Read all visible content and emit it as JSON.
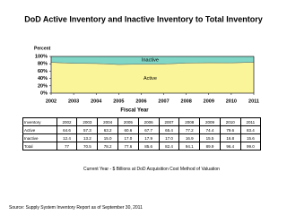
{
  "chart_data": {
    "type": "stacked_area",
    "title": "DoD Active Inventory and Inactive Inventory to Total Inventory",
    "ylabel": "Percent",
    "xlabel": "Fiscal Year",
    "x": [
      2002,
      2003,
      2004,
      2005,
      2006,
      2007,
      2008,
      2009,
      2010,
      2011
    ],
    "xlim": [
      2002,
      2011
    ],
    "xticks": [
      2002,
      2003,
      2004,
      2005,
      2006,
      2007,
      2008,
      2009,
      2010,
      2011
    ],
    "ylim": [
      0,
      100
    ],
    "yticks": [
      {
        "value": 0,
        "label": "0%"
      },
      {
        "value": 20,
        "label": "20%"
      },
      {
        "value": 40,
        "label": "40%"
      },
      {
        "value": 60,
        "label": "60%"
      },
      {
        "value": 80,
        "label": "80%"
      },
      {
        "value": 100,
        "label": "100%"
      }
    ],
    "series": [
      {
        "name": "Active",
        "color": "#fbf59a",
        "values": [
          83.9,
          81.3,
          80.8,
          78.1,
          79.1,
          79.4,
          82.0,
          82.8,
          82.6,
          84.2
        ]
      },
      {
        "name": "Inactive",
        "color": "#7fd6c6",
        "values": [
          16.1,
          18.7,
          19.2,
          21.9,
          20.9,
          20.6,
          18.0,
          17.2,
          17.4,
          15.8
        ]
      }
    ]
  },
  "table": {
    "header": [
      "Inventory",
      "2002",
      "2003",
      "2004",
      "2005",
      "2006",
      "2007",
      "2008",
      "2009",
      "2010",
      "2011"
    ],
    "rows": [
      [
        "Active",
        "64.6",
        "57.3",
        "63.2",
        "60.6",
        "67.7",
        "65.4",
        "77.2",
        "74.4",
        "79.6",
        "83.4"
      ],
      [
        "Inactive",
        "12.4",
        "13.2",
        "15.0",
        "17.0",
        "17.9",
        "17.0",
        "16.9",
        "15.5",
        "16.8",
        "15.6"
      ],
      [
        "Total",
        "77",
        "70.5",
        "78.2",
        "77.6",
        "85.6",
        "82.4",
        "94.1",
        "89.9",
        "96.4",
        "99.0"
      ]
    ]
  },
  "caption": "Current Year - $ Billions at DoD Acquisition Cost Method of Valuation",
  "source": "Source:  Supply System Inventory Report as of September 30, 2011"
}
